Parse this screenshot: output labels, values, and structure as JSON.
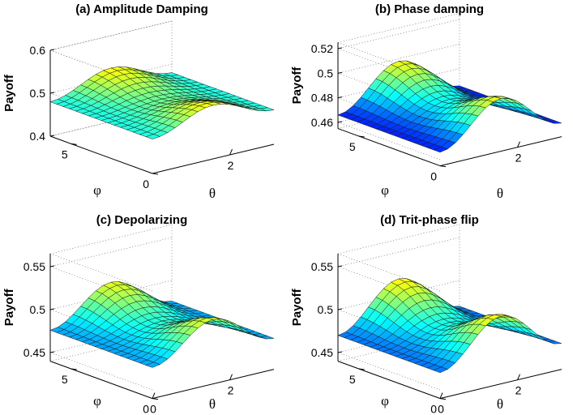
{
  "chart_data": [
    {
      "type": "surface",
      "title": "(a) Amplitude Damping",
      "xlabel": "θ",
      "ylabel": "φ",
      "zlabel": "Payoff",
      "xticks": [
        "2"
      ],
      "yticks": [
        "0",
        "5"
      ],
      "zticks": [
        "0.4",
        "0.5",
        "0.6"
      ],
      "xlim": [
        0,
        3.1416
      ],
      "ylim": [
        0,
        6.2832
      ],
      "zlim": [
        0.4,
        0.6
      ],
      "grid": true,
      "colormap": "jet",
      "surface": {
        "base": 0.47,
        "a1": 0.065,
        "a2": 0.04,
        "a3": 0.01
      }
    },
    {
      "type": "surface",
      "title": "(b) Phase damping",
      "xlabel": "θ",
      "ylabel": "φ",
      "zlabel": "Payoff",
      "xticks": [
        "2"
      ],
      "yticks": [
        "0",
        "5"
      ],
      "zticks": [
        "0.46",
        "0.48",
        "0.5",
        "0.52"
      ],
      "xlim": [
        0,
        3.1416
      ],
      "ylim": [
        0,
        6.2832
      ],
      "zlim": [
        0.455,
        0.525
      ],
      "grid": true,
      "colormap": "jet",
      "surface": {
        "base": 0.466,
        "a1": 0.032,
        "a2": 0.018,
        "a3": 0.0
      }
    },
    {
      "type": "surface",
      "title": "(c) Depolarizing",
      "xlabel": "θ",
      "ylabel": "φ",
      "zlabel": "Payoff",
      "xticks": [
        "0",
        "2"
      ],
      "yticks": [
        "0",
        "5"
      ],
      "zticks": [
        "0.45",
        "0.5",
        "0.55"
      ],
      "xlim": [
        0,
        3.1416
      ],
      "ylim": [
        0,
        6.2832
      ],
      "zlim": [
        0.44,
        0.565
      ],
      "grid": true,
      "colormap": "jet",
      "surface": {
        "base": 0.468,
        "a1": 0.055,
        "a2": 0.035,
        "a3": 0.008
      }
    },
    {
      "type": "surface",
      "title": "(d) Trit-phase flip",
      "xlabel": "θ",
      "ylabel": "φ",
      "zlabel": "Payoff",
      "xticks": [
        "0",
        "2"
      ],
      "yticks": [
        "0",
        "5"
      ],
      "zticks": [
        "0.45",
        "0.5",
        "0.55"
      ],
      "xlim": [
        0,
        3.1416
      ],
      "ylim": [
        0,
        6.2832
      ],
      "zlim": [
        0.44,
        0.565
      ],
      "grid": true,
      "colormap": "jet",
      "surface": {
        "base": 0.462,
        "a1": 0.065,
        "a2": 0.04,
        "a3": 0.008
      }
    }
  ]
}
